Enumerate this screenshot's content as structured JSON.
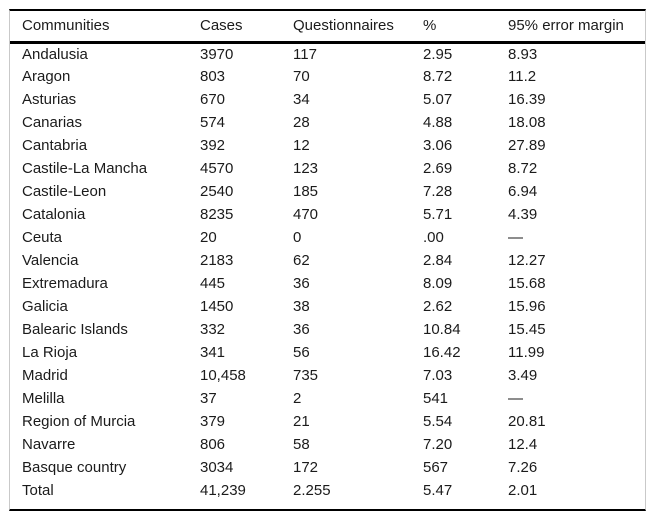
{
  "table": {
    "columns": [
      "Communities",
      "Cases",
      "Questionnaires",
      "%",
      "95% error margin"
    ],
    "rows": [
      [
        "Andalusia",
        "3970",
        "117",
        "2.95",
        "8.93"
      ],
      [
        "Aragon",
        "803",
        "70",
        "8.72",
        "11.2"
      ],
      [
        "Asturias",
        "670",
        "34",
        "5.07",
        "16.39"
      ],
      [
        "Canarias",
        "574",
        "28",
        "4.88",
        "18.08"
      ],
      [
        "Cantabria",
        "392",
        "12",
        "3.06",
        "27.89"
      ],
      [
        "Castile-La Mancha",
        "4570",
        "123",
        "2.69",
        "8.72"
      ],
      [
        "Castile-Leon",
        "2540",
        "185",
        "7.28",
        "6.94"
      ],
      [
        "Catalonia",
        "8235",
        "470",
        "5.71",
        "4.39"
      ],
      [
        "Ceuta",
        "20",
        "0",
        ".00",
        "—"
      ],
      [
        "Valencia",
        "2183",
        "62",
        "2.84",
        "12.27"
      ],
      [
        "Extremadura",
        "445",
        "36",
        "8.09",
        "15.68"
      ],
      [
        "Galicia",
        "1450",
        "38",
        "2.62",
        "15.96"
      ],
      [
        "Balearic Islands",
        "332",
        "36",
        "10.84",
        "15.45"
      ],
      [
        "La Rioja",
        "341",
        "56",
        "16.42",
        "11.99"
      ],
      [
        "Madrid",
        "10,458",
        "735",
        "7.03",
        "3.49"
      ],
      [
        "Melilla",
        "37",
        "2",
        "541",
        "—"
      ],
      [
        "Region of Murcia",
        "379",
        "21",
        "5.54",
        "20.81"
      ],
      [
        "Navarre",
        "806",
        "58",
        "7.20",
        "12.4"
      ],
      [
        "Basque country",
        "3034",
        "172",
        "567",
        "7.26"
      ],
      [
        "Total",
        "41,239",
        "2.255",
        "5.47",
        "2.01"
      ]
    ]
  },
  "colors": {
    "rule": "#000000",
    "frame": "#c9c9c9",
    "text": "#1b1b1b",
    "background": "#ffffff"
  }
}
